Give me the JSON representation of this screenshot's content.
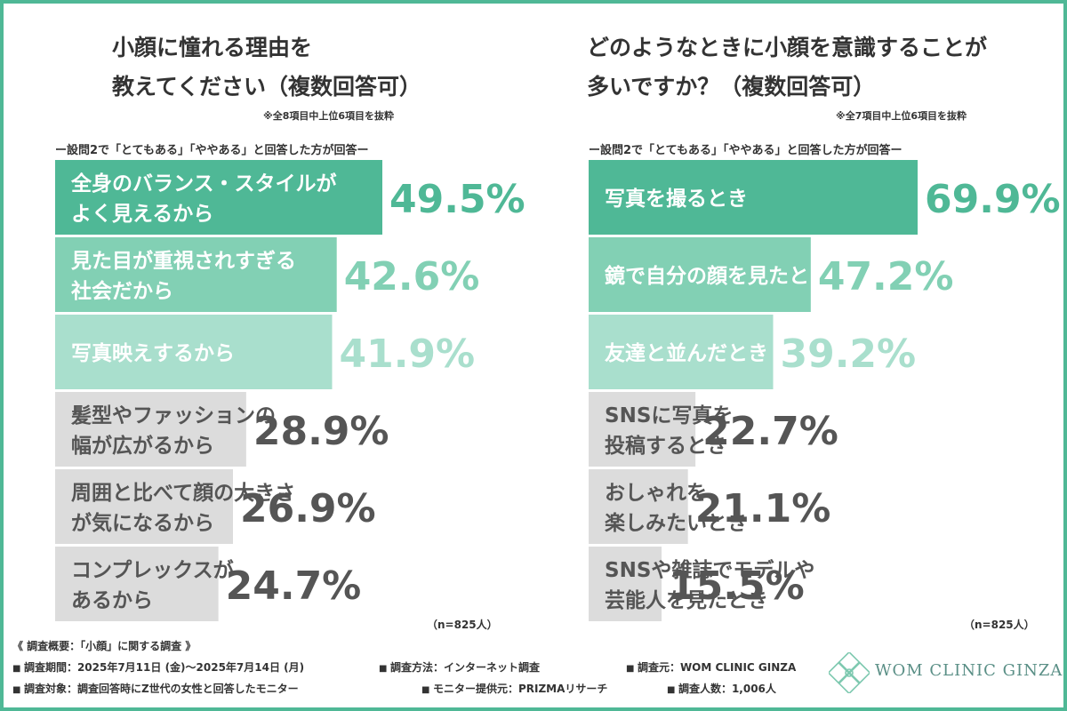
{
  "left": {
    "title_line1": "小顔に憧れる理由を",
    "title_line2": "教えてください（複数回答可）",
    "subnote": "※全8項目中上位6項目を抜粋",
    "condition": "ー設問2で「とてもある」「ややある」と回答した方が回答ー",
    "n_note": "（n=825人）"
  },
  "right": {
    "title_line1": "どのようなときに小顔を意識することが",
    "title_line2": "多いですか？（複数回答可）",
    "subnote": "※全7項目中上位6項目を抜粋",
    "condition": "ー設問2で「とてもある」「ややある」と回答した方が回答ー",
    "n_note": "（n=825人）"
  },
  "chart_data": [
    {
      "type": "bar",
      "orientation": "horizontal",
      "categories": [
        [
          "全身のバランス・スタイルが",
          "よく見えるから"
        ],
        [
          "見た目が重視されすぎる",
          "社会だから"
        ],
        [
          "写真映えするから"
        ],
        [
          "髪型やファッションの",
          "幅が広がるから"
        ],
        [
          "周囲と比べて顔の大きさ",
          "が気になるから"
        ],
        [
          "コンプレックスが",
          "あるから"
        ]
      ],
      "values": [
        49.5,
        42.6,
        41.9,
        28.9,
        26.9,
        24.7
      ],
      "labels": [
        "49.5%",
        "42.6%",
        "41.9%",
        "28.9%",
        "26.9%",
        "24.7%"
      ],
      "tiers": [
        "high",
        "mid",
        "light",
        "gray",
        "gray",
        "gray"
      ]
    },
    {
      "type": "bar",
      "orientation": "horizontal",
      "categories": [
        [
          "写真を撮るとき"
        ],
        [
          "鏡で自分の顔を見たとき"
        ],
        [
          "友達と並んだとき"
        ],
        [
          "SNSに写真を",
          "投稿するとき"
        ],
        [
          "おしゃれを",
          "楽しみたいとき"
        ],
        [
          "SNSや雑誌でモデルや",
          "芸能人を見たとき"
        ]
      ],
      "values": [
        69.9,
        47.2,
        39.2,
        22.7,
        21.1,
        15.5
      ],
      "labels": [
        "69.9%",
        "47.2%",
        "39.2%",
        "22.7%",
        "21.1%",
        "15.5%"
      ],
      "tiers": [
        "high",
        "mid",
        "light",
        "gray",
        "gray",
        "gray"
      ]
    }
  ],
  "colors": {
    "high": "#4fb896",
    "mid": "#82d0b4",
    "light": "#a9dfcd",
    "gray": "#dcdcdc",
    "gray_text": "#555555",
    "border": "#4fb896"
  },
  "footer": {
    "heading": "《 調査概要：「小顔」に関する調査 》",
    "items": [
      "調査期間：2025年7月11日 (金)〜2025年7月14日 (月)",
      "調査方法：インターネット調査",
      "調査元：WOM CLINIC GINZA",
      "調査対象：調査回答時にZ世代の女性と回答したモニター",
      "モニター提供元：PRIZMAリサーチ",
      "調査人数：1,006人"
    ]
  },
  "logo": {
    "text": "WOM CLINIC GINZA",
    "icon": "diamond-flower-logo-icon"
  }
}
